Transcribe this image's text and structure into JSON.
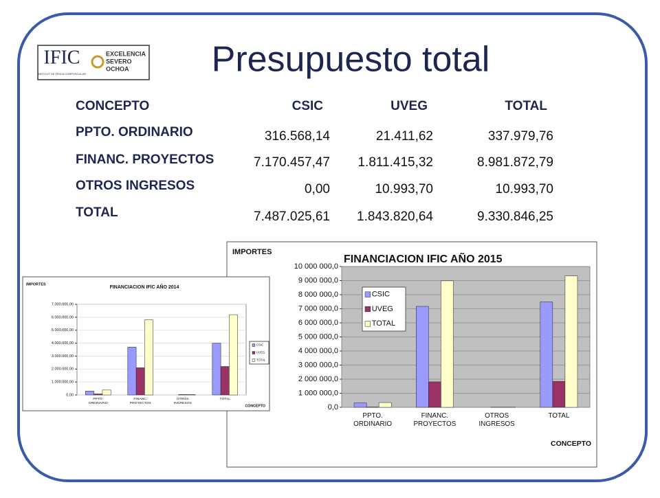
{
  "title": "Presupuesto total",
  "logo": {
    "acronym": "IFIC",
    "institute": "INSTITUT DE FÍSICA CORPUSCULAR",
    "line1": "EXCELENCIA",
    "line2": "SEVERO",
    "line3": "OCHOA"
  },
  "table": {
    "columns": [
      "CONCEPTO",
      "CSIC",
      "UVEG",
      "TOTAL"
    ],
    "rows": [
      [
        "PPTO. ORDINARIO",
        "316.568,14",
        "21.411,62",
        "337.979,76"
      ],
      [
        "FINANC. PROYECTOS",
        "7.170.457,47",
        "1.811.415,32",
        "8.981.872,79"
      ],
      [
        "OTROS INGRESOS",
        "0,00",
        "10.993,70",
        "10.993,70"
      ],
      [
        "TOTAL",
        "7.487.025,61",
        "1.843.820,64",
        "9.330.846,25"
      ]
    ]
  },
  "chart_data": [
    {
      "type": "bar",
      "title": "FINANCIACION IFIC AÑO 2015",
      "ylabel": "IMPORTES",
      "xlabel": "CONCEPTO",
      "categories": [
        "PPTO. ORDINARIO",
        "FINANC. PROYECTOS",
        "OTROS INGRESOS",
        "TOTAL"
      ],
      "series": [
        {
          "name": "CSIC",
          "color": "#9999ff",
          "values": [
            316568.14,
            7170457.47,
            0,
            7487025.61
          ]
        },
        {
          "name": "UVEG",
          "color": "#993366",
          "values": [
            21411.62,
            1811415.32,
            10993.7,
            1843820.64
          ]
        },
        {
          "name": "TOTAL",
          "color": "#ffffcc",
          "values": [
            337979.76,
            8981872.79,
            10993.7,
            9330846.25
          ]
        }
      ],
      "ylim": [
        0,
        10000000
      ],
      "yticks": [
        {
          "value": 0,
          "label": "0,0"
        },
        {
          "value": 1000000,
          "label": "1 000 000,0"
        },
        {
          "value": 2000000,
          "label": "2 000 000,0"
        },
        {
          "value": 3000000,
          "label": "3 000 000,0"
        },
        {
          "value": 4000000,
          "label": "4 000 000,0"
        },
        {
          "value": 5000000,
          "label": "5 000 000,0"
        },
        {
          "value": 6000000,
          "label": "6 000 000,0"
        },
        {
          "value": 7000000,
          "label": "7 000 000,0"
        },
        {
          "value": 8000000,
          "label": "8 000 000,0"
        },
        {
          "value": 9000000,
          "label": "9 000 000,0"
        },
        {
          "value": 10000000,
          "label": "10 000 000,0"
        }
      ],
      "grid": true,
      "legend": "upper left",
      "plot_background": "#c0c0c0"
    },
    {
      "type": "bar",
      "title": "FINANCIACION IFIC AÑO 2014",
      "ylabel": "IMPORTES",
      "xlabel": "CONCEPTO",
      "categories": [
        "PPTO. ORDINARIO",
        "FINANC. PROYECTOS",
        "OTROS INGRESOS",
        "TOTAL"
      ],
      "series": [
        {
          "name": "CSIC",
          "color": "#9999ff",
          "values": [
            300000,
            3700000,
            0,
            4000000
          ]
        },
        {
          "name": "UVEG",
          "color": "#993366",
          "values": [
            80000,
            2100000,
            30000,
            2200000
          ]
        },
        {
          "name": "TOTAL",
          "color": "#ffffcc",
          "values": [
            380000,
            5800000,
            30000,
            6200000
          ]
        }
      ],
      "ylim": [
        0,
        7000000
      ],
      "yticks": [
        {
          "value": 0,
          "label": "0,00"
        },
        {
          "value": 1000000,
          "label": "1.000.000,00"
        },
        {
          "value": 2000000,
          "label": "2.000.000,00"
        },
        {
          "value": 3000000,
          "label": "3.000.000,00"
        },
        {
          "value": 4000000,
          "label": "4.000.000,00"
        },
        {
          "value": 5000000,
          "label": "5.000.000,00"
        },
        {
          "value": 6000000,
          "label": "6.000.000,00"
        },
        {
          "value": 7000000,
          "label": "7.000.000,00"
        }
      ],
      "grid": true,
      "legend": "right",
      "plot_background": "#ffffff"
    }
  ]
}
